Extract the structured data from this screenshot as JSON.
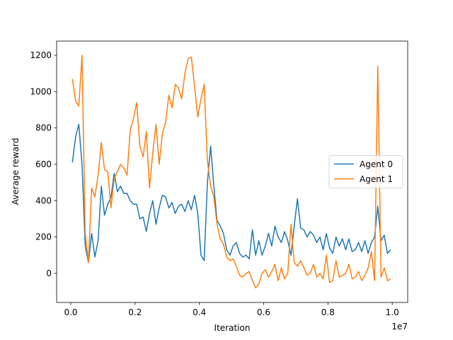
{
  "chart_data": {
    "type": "line",
    "xlabel": "Iteration",
    "ylabel": "Average reward",
    "x_offset_label": "1e7",
    "x": [
      50000,
      150000,
      250000,
      350000,
      450000,
      550000,
      650000,
      750000,
      850000,
      950000,
      1050000,
      1150000,
      1250000,
      1350000,
      1450000,
      1550000,
      1650000,
      1750000,
      1850000,
      1950000,
      2050000,
      2150000,
      2250000,
      2350000,
      2450000,
      2550000,
      2650000,
      2750000,
      2850000,
      2950000,
      3050000,
      3150000,
      3250000,
      3350000,
      3450000,
      3550000,
      3650000,
      3750000,
      3850000,
      3950000,
      4050000,
      4150000,
      4250000,
      4350000,
      4450000,
      4550000,
      4650000,
      4750000,
      4850000,
      4950000,
      5050000,
      5150000,
      5250000,
      5350000,
      5450000,
      5550000,
      5650000,
      5750000,
      5850000,
      5950000,
      6050000,
      6150000,
      6250000,
      6350000,
      6450000,
      6550000,
      6650000,
      6750000,
      6850000,
      6950000,
      7050000,
      7150000,
      7250000,
      7350000,
      7450000,
      7550000,
      7650000,
      7750000,
      7850000,
      7950000,
      8050000,
      8150000,
      8250000,
      8350000,
      8450000,
      8550000,
      8650000,
      8750000,
      8850000,
      8950000,
      9050000,
      9150000,
      9250000,
      9350000,
      9450000,
      9550000,
      9650000,
      9750000,
      9850000,
      9950000
    ],
    "series": [
      {
        "name": "Agent 0",
        "color": "#1f77b4",
        "values": [
          610,
          750,
          820,
          600,
          150,
          60,
          220,
          90,
          180,
          480,
          320,
          380,
          420,
          550,
          450,
          480,
          440,
          440,
          400,
          380,
          380,
          300,
          310,
          230,
          330,
          400,
          270,
          360,
          430,
          420,
          360,
          390,
          330,
          370,
          380,
          340,
          400,
          350,
          430,
          330,
          100,
          70,
          500,
          700,
          480,
          290,
          260,
          220,
          130,
          100,
          150,
          170,
          110,
          90,
          100,
          80,
          240,
          100,
          180,
          100,
          150,
          220,
          150,
          260,
          200,
          170,
          230,
          180,
          100,
          260,
          410,
          250,
          240,
          200,
          230,
          210,
          170,
          200,
          130,
          220,
          140,
          110,
          200,
          150,
          190,
          130,
          190,
          120,
          130,
          170,
          120,
          180,
          110,
          170,
          200,
          370,
          180,
          210,
          110,
          130
        ]
      },
      {
        "name": "Agent 1",
        "color": "#ff7f0e",
        "values": [
          1070,
          950,
          920,
          1200,
          220,
          60,
          470,
          420,
          540,
          720,
          570,
          560,
          360,
          520,
          560,
          600,
          580,
          540,
          790,
          850,
          940,
          700,
          640,
          780,
          470,
          660,
          820,
          600,
          770,
          830,
          980,
          910,
          1040,
          1020,
          960,
          1100,
          1180,
          1190,
          1030,
          860,
          960,
          1040,
          620,
          480,
          420,
          270,
          190,
          160,
          90,
          70,
          80,
          40,
          -10,
          -20,
          0,
          10,
          -40,
          -80,
          -60,
          0,
          20,
          -20,
          10,
          50,
          -40,
          30,
          -30,
          0,
          270,
          60,
          40,
          70,
          30,
          -10,
          0,
          50,
          -20,
          0,
          -30,
          100,
          -50,
          -40,
          70,
          -20,
          -10,
          0,
          50,
          -30,
          -20,
          10,
          -40,
          -10,
          30,
          120,
          -40,
          1140,
          -20,
          30,
          -40,
          -30
        ]
      }
    ],
    "xlim": [
      -440000,
      10480000
    ],
    "xticks": [
      {
        "value": 0,
        "label": "0.0"
      },
      {
        "value": 2000000,
        "label": "0.2"
      },
      {
        "value": 4000000,
        "label": "0.4"
      },
      {
        "value": 6000000,
        "label": "0.6"
      },
      {
        "value": 8000000,
        "label": "0.8"
      },
      {
        "value": 10000000,
        "label": "1.0"
      }
    ],
    "ylim": [
      -160,
      1278
    ],
    "yticks": [
      0,
      200,
      400,
      600,
      800,
      1000,
      1200
    ],
    "legend": "center right"
  }
}
